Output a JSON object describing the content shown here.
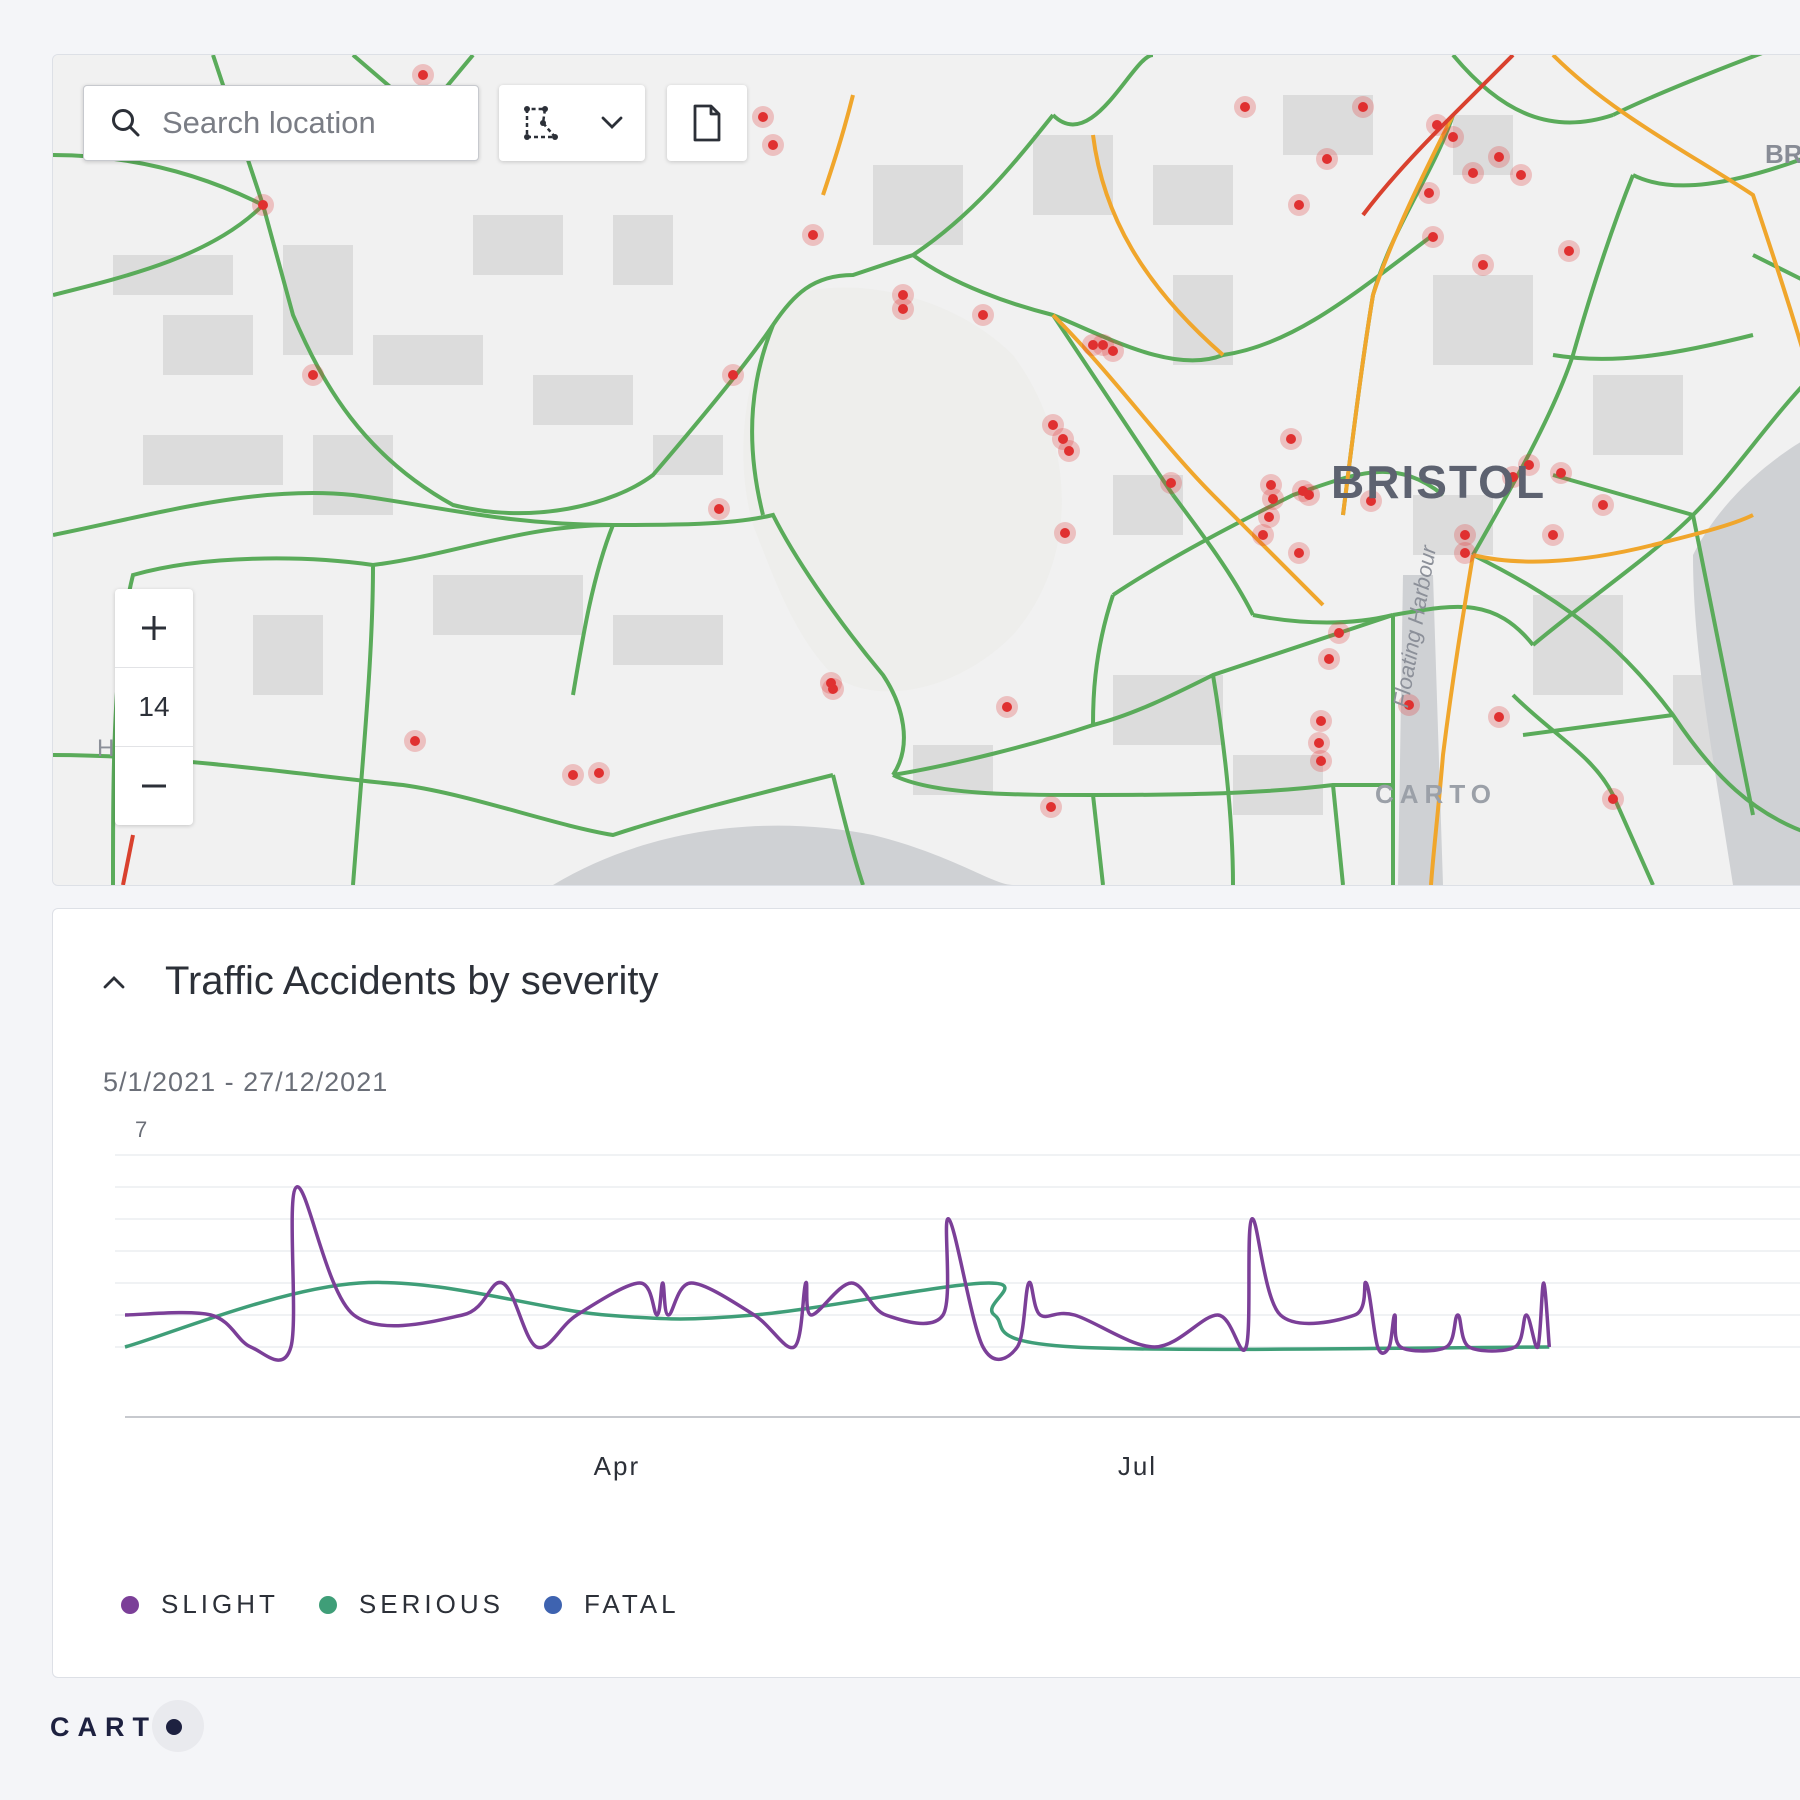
{
  "map": {
    "search": {
      "placeholder": "Search location",
      "value": ""
    },
    "zoom": {
      "in_label": "+",
      "level": "14",
      "out_label": "−"
    },
    "labels": {
      "city": "BRISTOL",
      "edge": "BR",
      "district": "H        ELLS",
      "harbour": "Floating Harbour"
    },
    "watermark": "CARTO",
    "colors": {
      "road_green": "#5aab5a",
      "road_orange": "#f0a62c",
      "road_red": "#d9412e",
      "accident": "#e03030"
    },
    "icons": [
      "search-icon",
      "polygon-select-icon",
      "chevron-down-icon",
      "file-icon",
      "plus-icon",
      "minus-icon"
    ]
  },
  "widget": {
    "title": "Traffic Accidents by severity",
    "date_range": "5/1/2021 - 27/12/2021"
  },
  "chart_data": {
    "type": "line",
    "title": "Traffic Accidents by severity",
    "x_range": [
      "2021-01-05",
      "2021-12-27"
    ],
    "x_ticks": [
      "Apr",
      "Jul"
    ],
    "y_ticks": [
      "7"
    ],
    "ylim": [
      0,
      7
    ],
    "grid": true,
    "legend_position": "bottom-left",
    "series": [
      {
        "name": "SLIGHT",
        "color": "#7b3f98",
        "points": [
          [
            "2021-01-05",
            2
          ],
          [
            "2021-01-20",
            2
          ],
          [
            "2021-01-27",
            1
          ],
          [
            "2021-02-03",
            1
          ],
          [
            "2021-02-04",
            6
          ],
          [
            "2021-02-14",
            2
          ],
          [
            "2021-03-05",
            2
          ],
          [
            "2021-03-12",
            3
          ],
          [
            "2021-03-18",
            1
          ],
          [
            "2021-03-25",
            2
          ],
          [
            "2021-04-05",
            3
          ],
          [
            "2021-04-08",
            2
          ],
          [
            "2021-04-09",
            3
          ],
          [
            "2021-04-10",
            2
          ],
          [
            "2021-04-14",
            3
          ],
          [
            "2021-04-25",
            2
          ],
          [
            "2021-05-02",
            1
          ],
          [
            "2021-05-04",
            3
          ],
          [
            "2021-05-05",
            2
          ],
          [
            "2021-05-12",
            3
          ],
          [
            "2021-05-18",
            2
          ],
          [
            "2021-05-28",
            2
          ],
          [
            "2021-05-29",
            5
          ],
          [
            "2021-06-04",
            1
          ],
          [
            "2021-06-10",
            1
          ],
          [
            "2021-06-12",
            3
          ],
          [
            "2021-06-14",
            2
          ],
          [
            "2021-06-20",
            2
          ],
          [
            "2021-07-04",
            1
          ],
          [
            "2021-07-15",
            2
          ],
          [
            "2021-07-20",
            1
          ],
          [
            "2021-07-21",
            5
          ],
          [
            "2021-07-26",
            2
          ],
          [
            "2021-08-08",
            2
          ],
          [
            "2021-08-10",
            3
          ],
          [
            "2021-08-12",
            1
          ],
          [
            "2021-08-14",
            1
          ],
          [
            "2021-08-15",
            2
          ],
          [
            "2021-08-16",
            1
          ],
          [
            "2021-08-24",
            1
          ],
          [
            "2021-08-26",
            2
          ],
          [
            "2021-08-28",
            1
          ],
          [
            "2021-09-05",
            1
          ],
          [
            "2021-09-07",
            2
          ],
          [
            "2021-09-09",
            1
          ],
          [
            "2021-09-10",
            3
          ],
          [
            "2021-09-11",
            1
          ]
        ]
      },
      {
        "name": "SERIOUS",
        "color": "#3f9e78",
        "points": [
          [
            "2021-01-05",
            1
          ],
          [
            "2021-02-15",
            3
          ],
          [
            "2021-03-30",
            2
          ],
          [
            "2021-04-25",
            2
          ],
          [
            "2021-06-05",
            3
          ],
          [
            "2021-06-06",
            2
          ],
          [
            "2021-06-20",
            1
          ],
          [
            "2021-09-11",
            1
          ]
        ]
      },
      {
        "name": "FATAL",
        "color": "#3e63b0",
        "points": []
      }
    ]
  },
  "footer": {
    "logo_text": "CART"
  }
}
